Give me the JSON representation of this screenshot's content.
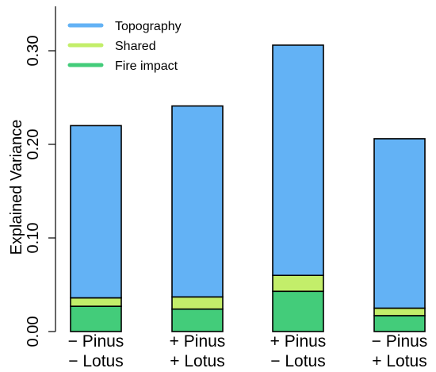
{
  "chart_data": {
    "type": "bar",
    "stacked": true,
    "categories": [
      [
        "− Pinus",
        "− Lotus"
      ],
      [
        "+ Pinus",
        "+ Lotus"
      ],
      [
        "+ Pinus",
        "− Lotus"
      ],
      [
        "− Pinus",
        "+ Lotus"
      ]
    ],
    "series": [
      {
        "name": "Fire impact",
        "color": "#43cc7a",
        "values": [
          0.027,
          0.024,
          0.043,
          0.017
        ]
      },
      {
        "name": "Shared",
        "color": "#c3ee6a",
        "values": [
          0.009,
          0.013,
          0.017,
          0.008
        ]
      },
      {
        "name": "Topography",
        "color": "#63b2f5",
        "values": [
          0.184,
          0.204,
          0.246,
          0.181
        ]
      }
    ],
    "legend_order": [
      "Topography",
      "Shared",
      "Fire impact"
    ],
    "legend_position": "top-left",
    "ylabel": "Explained Variance",
    "ylim": [
      0,
      0.35
    ],
    "yticks": [
      "0.00",
      "0.10",
      "0.20",
      "0.30"
    ],
    "grid": false,
    "edge_color": "#000000"
  }
}
